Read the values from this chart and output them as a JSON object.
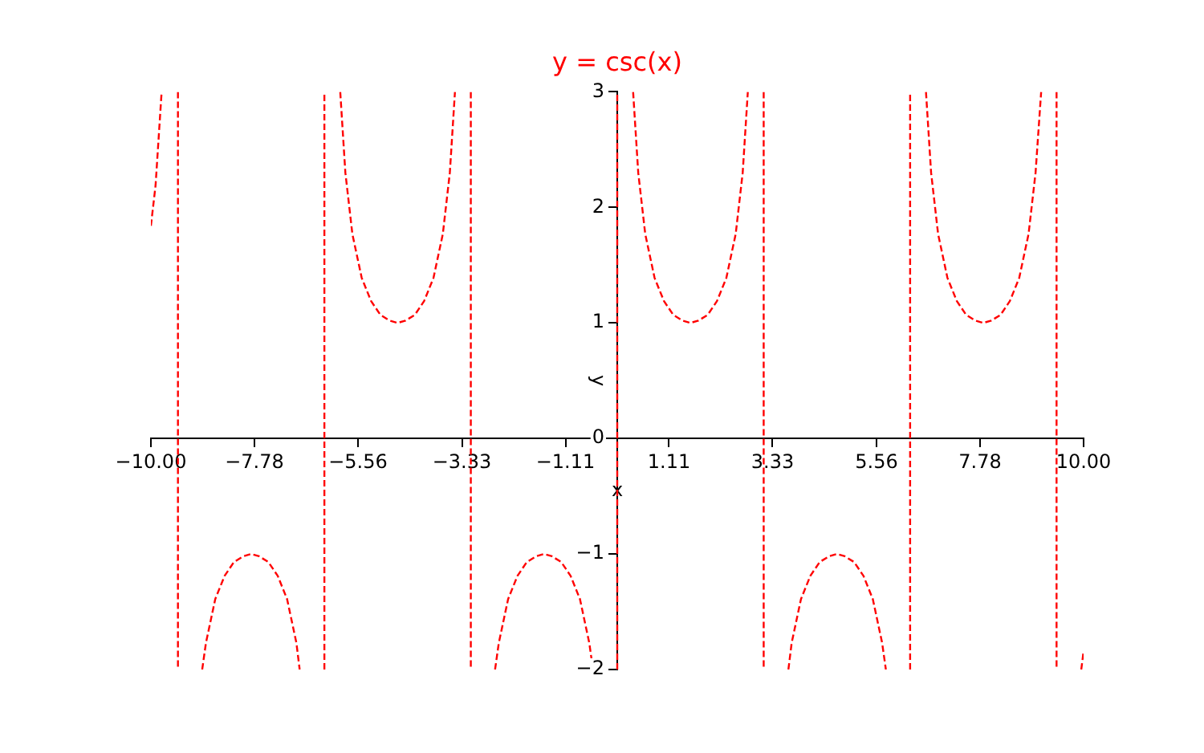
{
  "chart_data": {
    "type": "line",
    "title": "y = csc(x)",
    "xlabel": "x",
    "ylabel": "y",
    "xlim": [
      -10,
      10
    ],
    "xticks": [
      {
        "value": -10,
        "label": "−10.00"
      },
      {
        "value": -7.78,
        "label": "−7.78"
      },
      {
        "value": -5.56,
        "label": "−5.56"
      },
      {
        "value": -3.33,
        "label": "−3.33"
      },
      {
        "value": -1.11,
        "label": "−1.11"
      },
      {
        "value": 1.11,
        "label": "1.11"
      },
      {
        "value": 3.33,
        "label": "3.33"
      },
      {
        "value": 5.56,
        "label": "5.56"
      },
      {
        "value": 7.78,
        "label": "7.78"
      },
      {
        "value": 10,
        "label": "10.00"
      }
    ],
    "ylim": [
      -2,
      3
    ],
    "yticks": [
      {
        "value": -2,
        "label": "−2"
      },
      {
        "value": -1,
        "label": "−1"
      },
      0,
      1,
      2,
      3
    ],
    "grid": false,
    "legend": false,
    "marker": "none",
    "line_style": "dashed",
    "series": [
      {
        "color": "#ff0000",
        "x": [
          -10,
          -9.9,
          -9.77,
          -9.6,
          -9.42,
          -9.42,
          -9.1,
          -8.9,
          -8.82,
          -8.62,
          -8.42,
          -8.22,
          -8.02,
          -7.85,
          -7.68,
          -7.48,
          -7.28,
          -7.08,
          -6.88,
          -6.81,
          -6.5,
          -6.28,
          -6.28,
          -6.1,
          -5.94,
          -5.83,
          -5.68,
          -5.48,
          -5.28,
          -5.08,
          -4.88,
          -4.71,
          -4.54,
          -4.34,
          -4.14,
          -3.94,
          -3.74,
          -3.59,
          -3.48,
          -3.3,
          -3.14,
          -3.14,
          -2.9,
          -2.62,
          -2.54,
          -2.34,
          -2.14,
          -1.94,
          -1.74,
          -1.57,
          -1.4,
          -1.2,
          -1.0,
          -0.8,
          -0.6,
          -0.52,
          -0.3,
          0,
          0,
          0.2,
          0.34,
          0.45,
          0.6,
          0.8,
          1.0,
          1.2,
          1.4,
          1.57,
          1.74,
          1.94,
          2.14,
          2.34,
          2.54,
          2.69,
          2.8,
          3.0,
          3.14,
          3.14,
          3.4,
          3.67,
          3.74,
          3.94,
          4.14,
          4.34,
          4.54,
          4.71,
          4.88,
          5.08,
          5.28,
          5.48,
          5.68,
          5.76,
          6.0,
          6.28,
          6.28,
          6.45,
          6.62,
          6.73,
          6.88,
          7.08,
          7.28,
          7.48,
          7.68,
          7.85,
          8.02,
          8.22,
          8.42,
          8.62,
          8.82,
          8.97,
          9.09,
          9.3,
          9.42,
          9.42,
          9.7,
          9.95,
          10
        ],
        "values": [
          1.84,
          2.19,
          3,
          null,
          3,
          -2,
          null,
          -2,
          -1.77,
          -1.39,
          -1.19,
          -1.07,
          -1.02,
          -1,
          -1.02,
          -1.07,
          -1.19,
          -1.39,
          -1.77,
          -2,
          null,
          -2,
          3,
          null,
          3,
          2.3,
          1.77,
          1.39,
          1.19,
          1.07,
          1.02,
          1,
          1.02,
          1.07,
          1.19,
          1.39,
          1.77,
          2.3,
          3,
          null,
          3,
          -2,
          null,
          -2,
          -1.77,
          -1.39,
          -1.19,
          -1.07,
          -1.02,
          -1,
          -1.02,
          -1.07,
          -1.19,
          -1.39,
          -1.77,
          -2,
          null,
          -2,
          3,
          null,
          3,
          2.3,
          1.77,
          1.39,
          1.19,
          1.07,
          1.02,
          1,
          1.02,
          1.07,
          1.19,
          1.39,
          1.77,
          2.3,
          3,
          null,
          3,
          -2,
          null,
          -2,
          -1.77,
          -1.39,
          -1.19,
          -1.07,
          -1.02,
          -1,
          -1.02,
          -1.07,
          -1.19,
          -1.39,
          -1.77,
          -2,
          null,
          -2,
          3,
          null,
          3,
          2.3,
          1.77,
          1.39,
          1.19,
          1.07,
          1.02,
          1,
          1.02,
          1.07,
          1.19,
          1.39,
          1.77,
          2.3,
          3,
          null,
          3,
          -2,
          null,
          -2,
          -1.84
        ]
      }
    ]
  }
}
